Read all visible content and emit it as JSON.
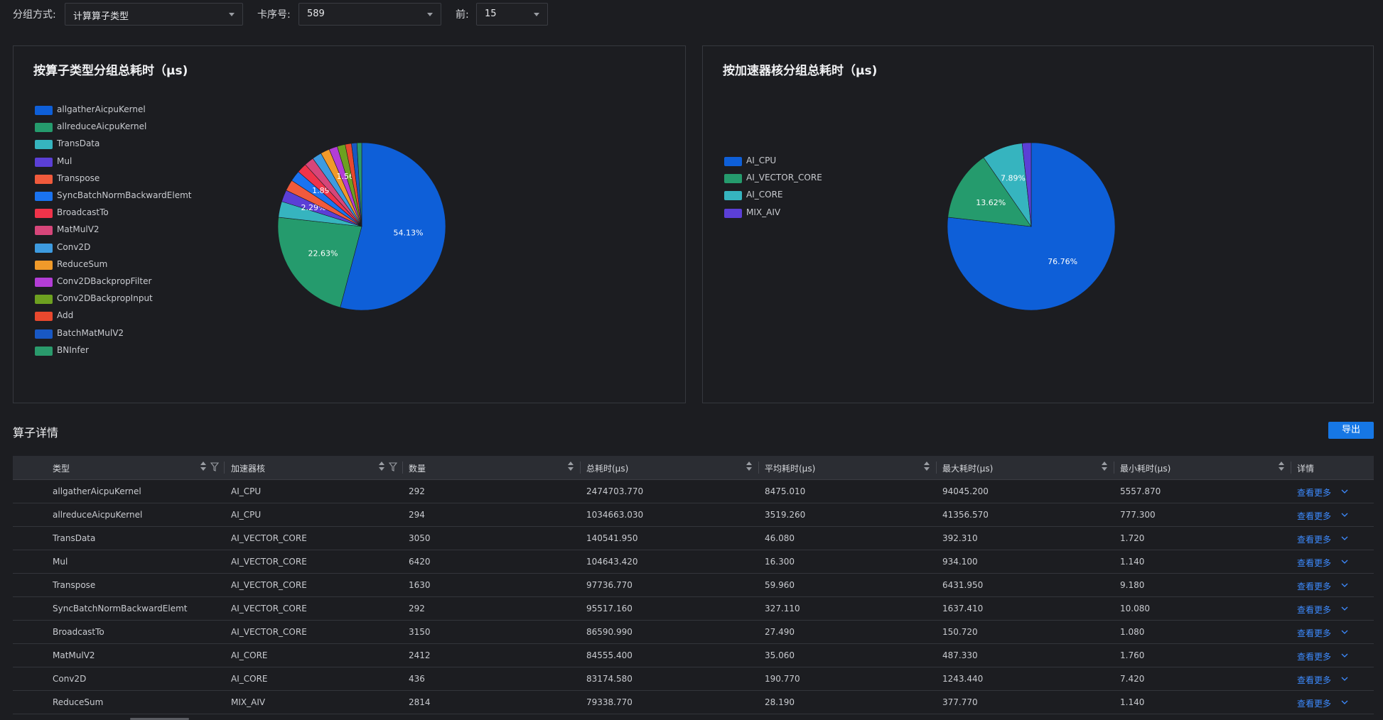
{
  "filters": {
    "group_label": "分组方式:",
    "group_value": "计算算子类型",
    "card_label": "卡序号:",
    "card_value": "589",
    "top_label": "前:",
    "top_value": "15"
  },
  "left_panel": {
    "title": "按算子类型分组总耗时（μs)"
  },
  "right_panel": {
    "title": "按加速器核分组总耗时（μs)"
  },
  "chart_data": [
    {
      "type": "pie",
      "title": "按算子类型分组总耗时（μs)",
      "legend_position": "left",
      "categories": [
        "allgatherAicpuKernel",
        "allreduceAicpuKernel",
        "TransData",
        "Mul",
        "Transpose",
        "SyncBatchNormBackwardElemt",
        "BroadcastTo",
        "MatMulV2",
        "Conv2D",
        "ReduceSum",
        "Conv2DBackpropFilter",
        "Conv2DBackpropInput",
        "Add",
        "BatchMatMulV2",
        "BNInfer"
      ],
      "values": [
        54.13,
        22.63,
        3.07,
        2.29,
        2.14,
        2.09,
        1.89,
        1.85,
        1.82,
        1.74,
        1.62,
        1.56,
        1.2,
        1.05,
        0.92
      ],
      "value_labels": [
        "54.13%",
        "22.63%",
        "",
        "2.29%",
        "",
        "",
        "1.89%",
        "",
        "",
        "",
        "",
        "1.56%",
        "",
        "",
        ""
      ],
      "colors": [
        "#0e5fd8",
        "#259b6d",
        "#36b4bf",
        "#5b3fd6",
        "#f05a3c",
        "#1a73f0",
        "#f0334a",
        "#d6467a",
        "#3d9be0",
        "#f09a2a",
        "#b33dd6",
        "#6da020",
        "#e8482e",
        "#1858c4",
        "#2a9a6c"
      ]
    },
    {
      "type": "pie",
      "title": "按加速器核分组总耗时（μs)",
      "legend_position": "left",
      "categories": [
        "AI_CPU",
        "AI_VECTOR_CORE",
        "AI_CORE",
        "MIX_AIV"
      ],
      "values": [
        76.76,
        13.62,
        7.89,
        1.73
      ],
      "value_labels": [
        "76.76%",
        "13.62%",
        "7.89%",
        ""
      ],
      "colors": [
        "#0e5fd8",
        "#259b6d",
        "#36b4bf",
        "#5b3fd6"
      ]
    }
  ],
  "details": {
    "title": "算子详情",
    "export_label": "导出",
    "columns": [
      "类型",
      "加速器核",
      "数量",
      "总耗时(μs)",
      "平均耗时(μs)",
      "最大耗时(μs)",
      "最小耗时(μs)",
      "详情"
    ],
    "more_label": "查看更多",
    "rows": [
      [
        "allgatherAicpuKernel",
        "AI_CPU",
        "292",
        "2474703.770",
        "8475.010",
        "94045.200",
        "5557.870"
      ],
      [
        "allreduceAicpuKernel",
        "AI_CPU",
        "294",
        "1034663.030",
        "3519.260",
        "41356.570",
        "777.300"
      ],
      [
        "TransData",
        "AI_VECTOR_CORE",
        "3050",
        "140541.950",
        "46.080",
        "392.310",
        "1.720"
      ],
      [
        "Mul",
        "AI_VECTOR_CORE",
        "6420",
        "104643.420",
        "16.300",
        "934.100",
        "1.140"
      ],
      [
        "Transpose",
        "AI_VECTOR_CORE",
        "1630",
        "97736.770",
        "59.960",
        "6431.950",
        "9.180"
      ],
      [
        "SyncBatchNormBackwardElemt",
        "AI_VECTOR_CORE",
        "292",
        "95517.160",
        "327.110",
        "1637.410",
        "10.080"
      ],
      [
        "BroadcastTo",
        "AI_VECTOR_CORE",
        "3150",
        "86590.990",
        "27.490",
        "150.720",
        "1.080"
      ],
      [
        "MatMulV2",
        "AI_CORE",
        "2412",
        "84555.400",
        "35.060",
        "487.330",
        "1.760"
      ],
      [
        "Conv2D",
        "AI_CORE",
        "436",
        "83174.580",
        "190.770",
        "1243.440",
        "7.420"
      ],
      [
        "ReduceSum",
        "MIX_AIV",
        "2814",
        "79338.770",
        "28.190",
        "377.770",
        "1.140"
      ]
    ]
  }
}
